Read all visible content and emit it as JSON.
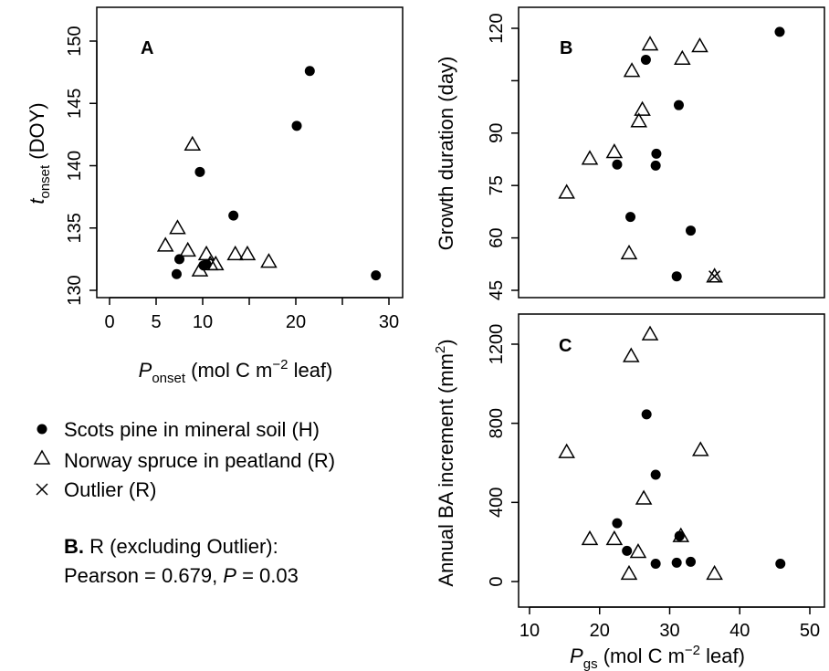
{
  "chart_data": [
    {
      "panel": "A",
      "type": "scatter",
      "xlabel": {
        "main": "P",
        "sub": "onset",
        "rest": " (mol C m",
        "sup": "−2",
        "tail": " leaf)"
      },
      "ylabel": {
        "main": "t",
        "sub": "onset",
        "rest": " (DOY)"
      },
      "xlim": [
        0,
        30
      ],
      "ylim": [
        130,
        150
      ],
      "xticks": [
        0,
        5,
        10,
        15,
        20,
        25,
        30
      ],
      "xtick_labels": [
        "0",
        "5",
        "10",
        "",
        "20",
        "",
        "30"
      ],
      "yticks": [
        130,
        135,
        140,
        145,
        150
      ],
      "series": [
        {
          "name": "Scots pine in mineral soil (H)",
          "marker": "filled-circle",
          "points": [
            [
              7.2,
              131.3
            ],
            [
              7.5,
              132.5
            ],
            [
              9.7,
              139.5
            ],
            [
              10.1,
              132.0
            ],
            [
              10.4,
              132.1
            ],
            [
              13.3,
              136.0
            ],
            [
              20.1,
              143.2
            ],
            [
              21.5,
              147.6
            ],
            [
              28.6,
              131.2
            ]
          ]
        },
        {
          "name": "Norway spruce in peatland (R)",
          "marker": "open-triangle",
          "points": [
            [
              6.0,
              133.6
            ],
            [
              7.3,
              135.0
            ],
            [
              8.4,
              133.2
            ],
            [
              8.9,
              141.7
            ],
            [
              9.7,
              131.6
            ],
            [
              10.4,
              132.9
            ],
            [
              10.8,
              132.1
            ],
            [
              11.4,
              132.1
            ],
            [
              13.5,
              132.9
            ],
            [
              14.8,
              132.9
            ],
            [
              17.1,
              132.3
            ]
          ]
        }
      ]
    },
    {
      "panel": "B",
      "type": "scatter",
      "ylabel": "Growth duration (day)",
      "xlim": [
        10,
        50
      ],
      "ylim": [
        45,
        120
      ],
      "yticks": [
        45,
        60,
        75,
        90,
        105,
        120
      ],
      "ytick_labels": [
        "45",
        "60",
        "75",
        "90",
        "",
        "120"
      ],
      "series": [
        {
          "name": "Scots pine in mineral soil (H)",
          "marker": "filled-circle",
          "points": [
            [
              22.5,
              81
            ],
            [
              24.4,
              66
            ],
            [
              26.6,
              111
            ],
            [
              28,
              80.7
            ],
            [
              28.1,
              84.1
            ],
            [
              31,
              49
            ],
            [
              31.3,
              98
            ],
            [
              33,
              62.1
            ],
            [
              45.7,
              119
            ]
          ]
        },
        {
          "name": "Norway spruce in peatland (R)",
          "marker": "open-triangle",
          "points": [
            [
              15.3,
              73
            ],
            [
              18.6,
              82.7
            ],
            [
              22.1,
              84.6
            ],
            [
              24.2,
              55.6
            ],
            [
              24.6,
              107.8
            ],
            [
              25.6,
              93.4
            ],
            [
              26.1,
              96.7
            ],
            [
              27.2,
              115.4
            ],
            [
              31.8,
              111.3
            ],
            [
              34.3,
              114.9
            ]
          ]
        },
        {
          "name": "Outlier (R)",
          "marker": "cross",
          "points": [
            [
              36.4,
              49
            ]
          ]
        }
      ]
    },
    {
      "panel": "C",
      "type": "scatter",
      "ylabel": "Annual BA increment (mm2)",
      "ylabel_parts": {
        "main": "Annual BA increment (mm",
        "sup": "2",
        "tail": ")"
      },
      "xlabel": {
        "main": "P",
        "sub": "gs",
        "rest": " (mol C m",
        "sup": "−2",
        "tail": " leaf)"
      },
      "xlim": [
        10,
        50
      ],
      "ylim": [
        0,
        1300
      ],
      "xticks": [
        10,
        20,
        30,
        40,
        50
      ],
      "yticks": [
        0,
        400,
        800,
        1200
      ],
      "series": [
        {
          "name": "Scots pine in mineral soil (H)",
          "marker": "filled-circle",
          "points": [
            [
              22.5,
              295
            ],
            [
              23.9,
              155
            ],
            [
              26.7,
              845
            ],
            [
              28,
              540
            ],
            [
              28,
              90
            ],
            [
              31,
              95
            ],
            [
              31.4,
              230
            ],
            [
              33,
              100
            ],
            [
              45.8,
              90
            ]
          ]
        },
        {
          "name": "Norway spruce in peatland (R)",
          "marker": "open-triangle",
          "points": [
            [
              15.3,
              655
            ],
            [
              18.6,
              215
            ],
            [
              22.1,
              215
            ],
            [
              24.2,
              40
            ],
            [
              24.5,
              1140
            ],
            [
              25.5,
              150
            ],
            [
              26.3,
              420
            ],
            [
              27.2,
              1250
            ],
            [
              31.6,
              230
            ],
            [
              34.4,
              665
            ],
            [
              36.4,
              40
            ]
          ]
        }
      ]
    }
  ],
  "legend": [
    {
      "label": "Scots pine in mineral soil (H)",
      "symbol": "filled-circle"
    },
    {
      "label": "Norway spruce in peatland (R)",
      "symbol": "open-triangle"
    },
    {
      "label": "Outlier (R)",
      "symbol": "cross"
    }
  ],
  "note": {
    "bold": "B.",
    "line1_rest": " R (excluding Outlier):",
    "line2_a": "Pearson = 0.679, ",
    "line2_p": "P",
    "line2_b": " = 0.03"
  }
}
